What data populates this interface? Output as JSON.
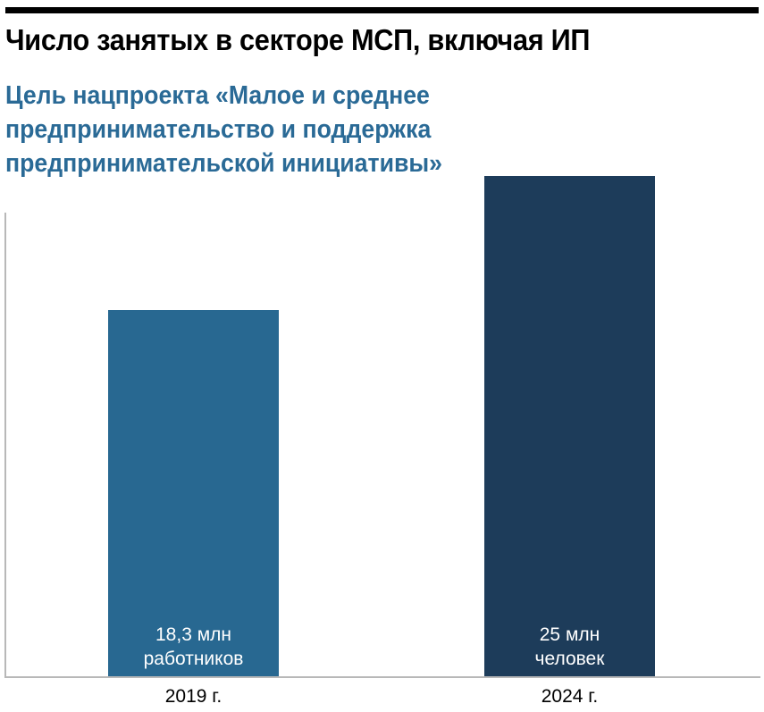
{
  "header": {
    "title": "Число занятых в секторе МСП, включая ИП",
    "subtitle_lines": [
      "Цель нацпроекта «Малое и среднее",
      "предпринимательство и поддержка",
      "предпринимательской инициативы»"
    ]
  },
  "colors": {
    "subtitle": "#2a6a96",
    "bar_2019": "#286891",
    "bar_2024": "#1d3c5a",
    "axis": "#b8b8b8"
  },
  "bars": [
    {
      "category": "2019 г.",
      "value": 18.3,
      "label_line1": "18,3 млн",
      "label_line2": "работников"
    },
    {
      "category": "2024 г.",
      "value": 25,
      "label_line1": "25 млн",
      "label_line2": "человек"
    }
  ],
  "chart_data": {
    "type": "bar",
    "title": "Число занятых в секторе МСП, включая ИП",
    "subtitle": "Цель нацпроекта «Малое и среднее предпринимательство и поддержка предпринимательской инициативы»",
    "categories": [
      "2019 г.",
      "2024 г."
    ],
    "values": [
      18.3,
      25
    ],
    "data_labels": [
      "18,3 млн работников",
      "25 млн человек"
    ],
    "unit": "млн",
    "xlabel": "",
    "ylabel": "",
    "ylim": [
      0,
      25
    ],
    "grid": false,
    "legend": null
  }
}
